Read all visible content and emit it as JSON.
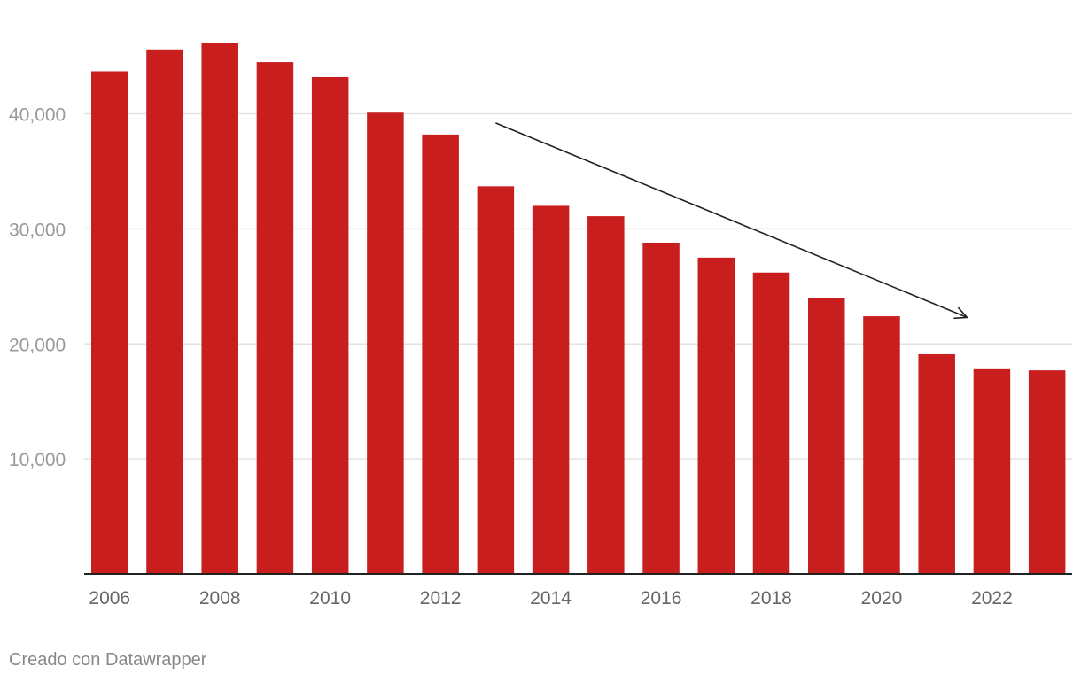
{
  "chart_data": {
    "type": "bar",
    "categories": [
      "2006",
      "2007",
      "2008",
      "2009",
      "2010",
      "2011",
      "2012",
      "2013",
      "2014",
      "2015",
      "2016",
      "2017",
      "2018",
      "2019",
      "2020",
      "2021",
      "2022",
      "2023"
    ],
    "values": [
      43700,
      45600,
      46200,
      44500,
      43200,
      40100,
      38200,
      33700,
      32000,
      31100,
      28800,
      27500,
      26200,
      24000,
      22400,
      19100,
      17800,
      17700
    ],
    "x_tick_labels": [
      "2006",
      "",
      "2008",
      "",
      "2010",
      "",
      "2012",
      "",
      "2014",
      "",
      "2016",
      "",
      "2018",
      "",
      "2020",
      "",
      "2022",
      ""
    ],
    "y_ticks": [
      10000,
      20000,
      30000,
      40000
    ],
    "y_tick_labels": [
      "10,000",
      "20,000",
      "30,000",
      "40,000"
    ],
    "ylim": [
      0,
      46200
    ],
    "title": "",
    "xlabel": "",
    "ylabel": "",
    "grid": true,
    "legend": "none",
    "annotation": {
      "type": "arrow",
      "from": {
        "x": "2013",
        "y": 39200
      },
      "to": {
        "x": "2022",
        "y": 22300
      }
    },
    "colors": {
      "bar": "#c81e1e",
      "grid": "#e2e2e2",
      "axis": "#222222",
      "tick_text": "#999999",
      "x_tick_text": "#666666",
      "arrow": "#222222"
    }
  },
  "credit": "Creado con Datawrapper"
}
